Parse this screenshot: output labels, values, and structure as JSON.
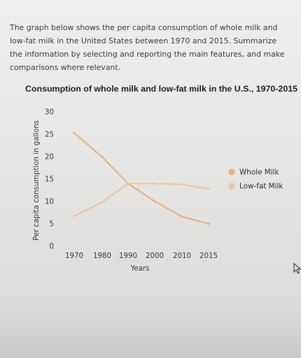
{
  "prompt": {
    "text": "The graph below shows the per capita consumption of whole milk and\nlow-fat milk in the United States between 1970 and 2015. Summarize\nthe information by selecting and reporting the main features, and make\ncomparisons where relevant."
  },
  "chart_data": {
    "type": "line",
    "title": "Consumption of whole milk and low-fat milk in the U.S., 1970-2015",
    "xlabel": "Years",
    "ylabel": "Per capita consumption in gallons",
    "x": [
      1970,
      1980,
      1990,
      2000,
      2010,
      2015
    ],
    "ylim": [
      0,
      30
    ],
    "yticks": [
      0,
      5,
      10,
      15,
      20,
      25,
      30
    ],
    "grid": false,
    "legend_position": "right",
    "series": [
      {
        "name": "Whole Milk",
        "color": "#e8b07a",
        "values": [
          25.3,
          19.9,
          14.0,
          10.0,
          6.6,
          5.0
        ]
      },
      {
        "name": "Low-fat Milk",
        "color": "#efc69a",
        "values": [
          6.7,
          9.8,
          14.0,
          14.0,
          13.8,
          12.8
        ]
      }
    ]
  },
  "icons": {
    "cursor": "mouse-pointer-icon"
  }
}
